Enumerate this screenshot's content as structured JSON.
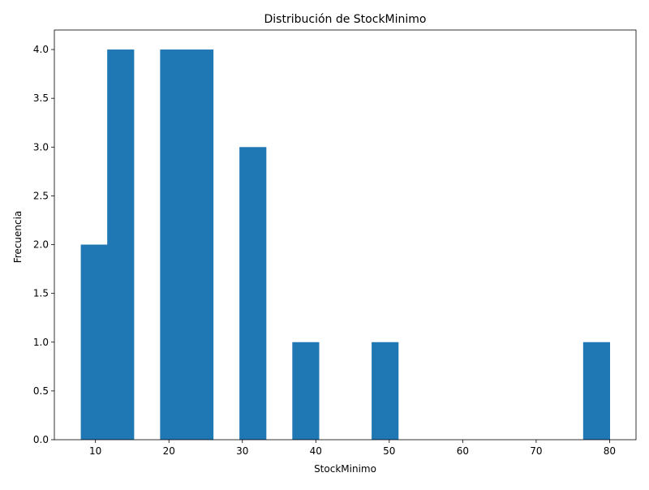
{
  "chart_data": {
    "type": "bar",
    "title": "Distribución de StockMinimo",
    "xlabel": "StockMinimo",
    "ylabel": "Frecuencia",
    "xlim": [
      4.4,
      83.6
    ],
    "ylim": [
      0,
      4.2
    ],
    "x_ticks": [
      10,
      20,
      30,
      40,
      50,
      60,
      70,
      80
    ],
    "y_ticks": [
      0.0,
      0.5,
      1.0,
      1.5,
      2.0,
      2.5,
      3.0,
      3.5,
      4.0
    ],
    "bin_edges": [
      8.0,
      11.6,
      15.2,
      18.8,
      22.4,
      26.0,
      29.6,
      33.2,
      36.8,
      40.4,
      44.0,
      47.6,
      51.2,
      54.8,
      58.4,
      62.0,
      65.6,
      69.2,
      72.8,
      76.4,
      80.0
    ],
    "counts": [
      2,
      4,
      0,
      4,
      4,
      0,
      3,
      0,
      1,
      0,
      0,
      1,
      0,
      0,
      0,
      0,
      0,
      0,
      0,
      1
    ],
    "bar_color": "#1f77b4",
    "grid": false,
    "legend": "none"
  }
}
